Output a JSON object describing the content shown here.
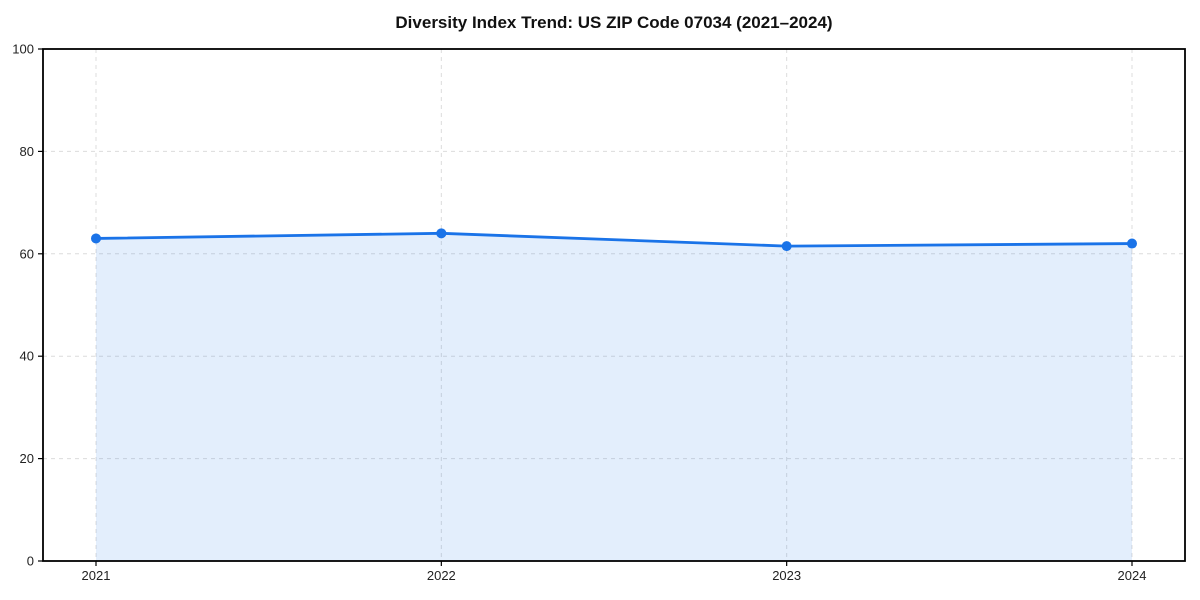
{
  "chart_data": {
    "type": "area",
    "title": "Diversity Index Trend: US ZIP Code 07034 (2021–2024)",
    "categories": [
      "2021",
      "2022",
      "2023",
      "2024"
    ],
    "series": [
      {
        "name": "Diversity Index",
        "values": [
          63,
          64,
          61.5,
          62
        ]
      }
    ],
    "xlabel": "",
    "ylabel": "",
    "ylim": [
      0,
      100
    ],
    "yticks": [
      0,
      20,
      40,
      60,
      80,
      100
    ],
    "grid": true,
    "grid_style": "dashed",
    "legend": "none",
    "colors": {
      "line": "#1a73e8",
      "marker": "#1a73e8",
      "fill": "rgba(26, 115, 232, 0.12)",
      "grid": "#dcdcdc",
      "axis": "#000000",
      "tick_label": "#222222",
      "background": "#ffffff"
    }
  }
}
